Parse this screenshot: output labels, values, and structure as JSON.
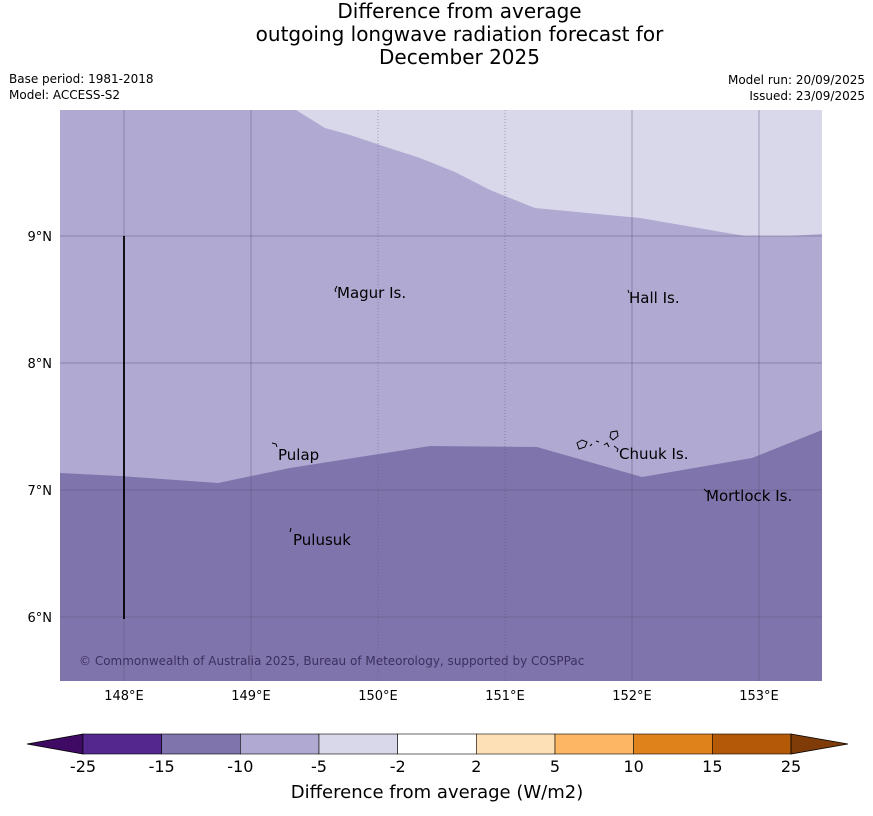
{
  "title": {
    "line1": "Difference from average",
    "line2": "outgoing longwave radiation forecast for",
    "line3": "December 2025"
  },
  "meta": {
    "base_period": "Base period: 1981-2018",
    "model": "Model: ACCESS-S2",
    "model_run": "Model run: 20/09/2025",
    "issued": "Issued: 23/09/2025"
  },
  "map": {
    "x_ticks": [
      "148°E",
      "149°E",
      "150°E",
      "151°E",
      "152°E",
      "153°E"
    ],
    "y_ticks": [
      "9°N",
      "8°N",
      "7°N",
      "6°N"
    ],
    "places": [
      {
        "name": "Magur Is."
      },
      {
        "name": "Hall Is."
      },
      {
        "name": "Pulap"
      },
      {
        "name": "Chuuk Is."
      },
      {
        "name": "Mortlock Is."
      },
      {
        "name": "Pulusuk"
      }
    ],
    "copyright": "© Commonwealth of Australia 2025, Bureau of Meteorology, supported by COSPPac",
    "colors": {
      "band_minus15_minus10": "#8074ac",
      "band_minus10_minus5": "#b0aad2",
      "band_minus5_minus2": "#d8d8ea"
    }
  },
  "colorbar": {
    "title": "Difference from average (W/m2)",
    "labels": [
      "-25",
      "-15",
      "-10",
      "-5",
      "-2",
      "2",
      "5",
      "10",
      "15",
      "25"
    ],
    "colors": [
      "#3f0a63",
      "#54278f",
      "#8074ac",
      "#b0aad2",
      "#d8d8ea",
      "#ffffff",
      "#fde0b6",
      "#fdb663",
      "#e0821c",
      "#b35907",
      "#7f3b08"
    ]
  }
}
